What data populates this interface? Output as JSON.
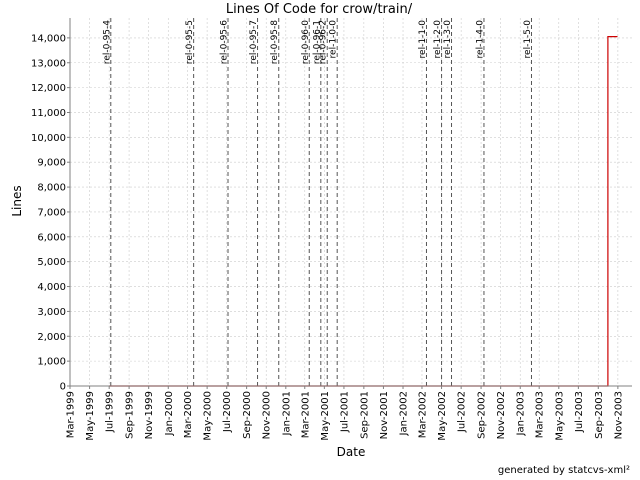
{
  "chart_data": {
    "type": "line",
    "title": "Lines Of Code for crow/train/",
    "xlabel": "Date",
    "ylabel": "Lines",
    "x_range": [
      "1999-03-01",
      "2003-12-15"
    ],
    "ylim": [
      0,
      14800
    ],
    "grid": true,
    "y_ticks": [
      {
        "value": 0,
        "label": "0"
      },
      {
        "value": 1000,
        "label": "1,000"
      },
      {
        "value": 2000,
        "label": "2,000"
      },
      {
        "value": 3000,
        "label": "3,000"
      },
      {
        "value": 4000,
        "label": "4,000"
      },
      {
        "value": 5000,
        "label": "5,000"
      },
      {
        "value": 6000,
        "label": "6,000"
      },
      {
        "value": 7000,
        "label": "7,000"
      },
      {
        "value": 8000,
        "label": "8,000"
      },
      {
        "value": 9000,
        "label": "9,000"
      },
      {
        "value": 10000,
        "label": "10,000"
      },
      {
        "value": 11000,
        "label": "11,000"
      },
      {
        "value": 12000,
        "label": "12,000"
      },
      {
        "value": 13000,
        "label": "13,000"
      },
      {
        "value": 14000,
        "label": "14,000"
      }
    ],
    "x_ticks": [
      {
        "date": "1999-03-01",
        "label": "Mar-1999"
      },
      {
        "date": "1999-05-01",
        "label": "May-1999"
      },
      {
        "date": "1999-07-01",
        "label": "Jul-1999"
      },
      {
        "date": "1999-09-01",
        "label": "Sep-1999"
      },
      {
        "date": "1999-11-01",
        "label": "Nov-1999"
      },
      {
        "date": "2000-01-01",
        "label": "Jan-2000"
      },
      {
        "date": "2000-03-01",
        "label": "Mar-2000"
      },
      {
        "date": "2000-05-01",
        "label": "May-2000"
      },
      {
        "date": "2000-07-01",
        "label": "Jul-2000"
      },
      {
        "date": "2000-09-01",
        "label": "Sep-2000"
      },
      {
        "date": "2000-11-01",
        "label": "Nov-2000"
      },
      {
        "date": "2001-01-01",
        "label": "Jan-2001"
      },
      {
        "date": "2001-03-01",
        "label": "Mar-2001"
      },
      {
        "date": "2001-05-01",
        "label": "May-2001"
      },
      {
        "date": "2001-07-01",
        "label": "Jul-2001"
      },
      {
        "date": "2001-09-01",
        "label": "Sep-2001"
      },
      {
        "date": "2001-11-01",
        "label": "Nov-2001"
      },
      {
        "date": "2002-01-01",
        "label": "Jan-2002"
      },
      {
        "date": "2002-03-01",
        "label": "Mar-2002"
      },
      {
        "date": "2002-05-01",
        "label": "May-2002"
      },
      {
        "date": "2002-07-01",
        "label": "Jul-2002"
      },
      {
        "date": "2002-09-01",
        "label": "Sep-2002"
      },
      {
        "date": "2002-11-01",
        "label": "Nov-2002"
      },
      {
        "date": "2003-01-01",
        "label": "Jan-2003"
      },
      {
        "date": "2003-03-01",
        "label": "Mar-2003"
      },
      {
        "date": "2003-05-01",
        "label": "May-2003"
      },
      {
        "date": "2003-07-01",
        "label": "Jul-2003"
      },
      {
        "date": "2003-09-01",
        "label": "Sep-2003"
      },
      {
        "date": "2003-11-01",
        "label": "Nov-2003"
      }
    ],
    "tags": [
      {
        "label": "rel-0-95-4",
        "date": "1999-07-06"
      },
      {
        "label": "rel-0-95-5",
        "date": "2000-03-20"
      },
      {
        "label": "rel-0-95-6",
        "date": "2000-07-05"
      },
      {
        "label": "rel-0-95-7",
        "date": "2000-10-05"
      },
      {
        "label": "rel-0-95-8",
        "date": "2000-12-10"
      },
      {
        "label": "rel-0-96-0",
        "date": "2001-03-15"
      },
      {
        "label": "rel-0-96-1",
        "date": "2001-04-20"
      },
      {
        "label": "rel-0-96-2",
        "date": "2001-05-10"
      },
      {
        "label": "rel-1-0-0",
        "date": "2001-06-10"
      },
      {
        "label": "rel-1-1-0",
        "date": "2002-03-15"
      },
      {
        "label": "rel-1-2-0",
        "date": "2002-05-01"
      },
      {
        "label": "rel-1-3-0",
        "date": "2002-06-01"
      },
      {
        "label": "rel-1-4-0",
        "date": "2002-09-10"
      },
      {
        "label": "rel-1-5-0",
        "date": "2003-02-05"
      }
    ],
    "series": [
      {
        "color": "#cc0000",
        "points": [
          {
            "x": "1999-07-01",
            "y": 0
          },
          {
            "x": "2003-10-01",
            "y": 0
          },
          {
            "x": "2003-10-01",
            "y": 14050
          },
          {
            "x": "2003-10-31",
            "y": 14050
          }
        ]
      }
    ]
  },
  "footer": "generated by statcvs-xml²",
  "colors": {
    "grid": "#cccccc",
    "tag_line": "#555555",
    "series": "#cc0000",
    "axis": "#808080"
  }
}
